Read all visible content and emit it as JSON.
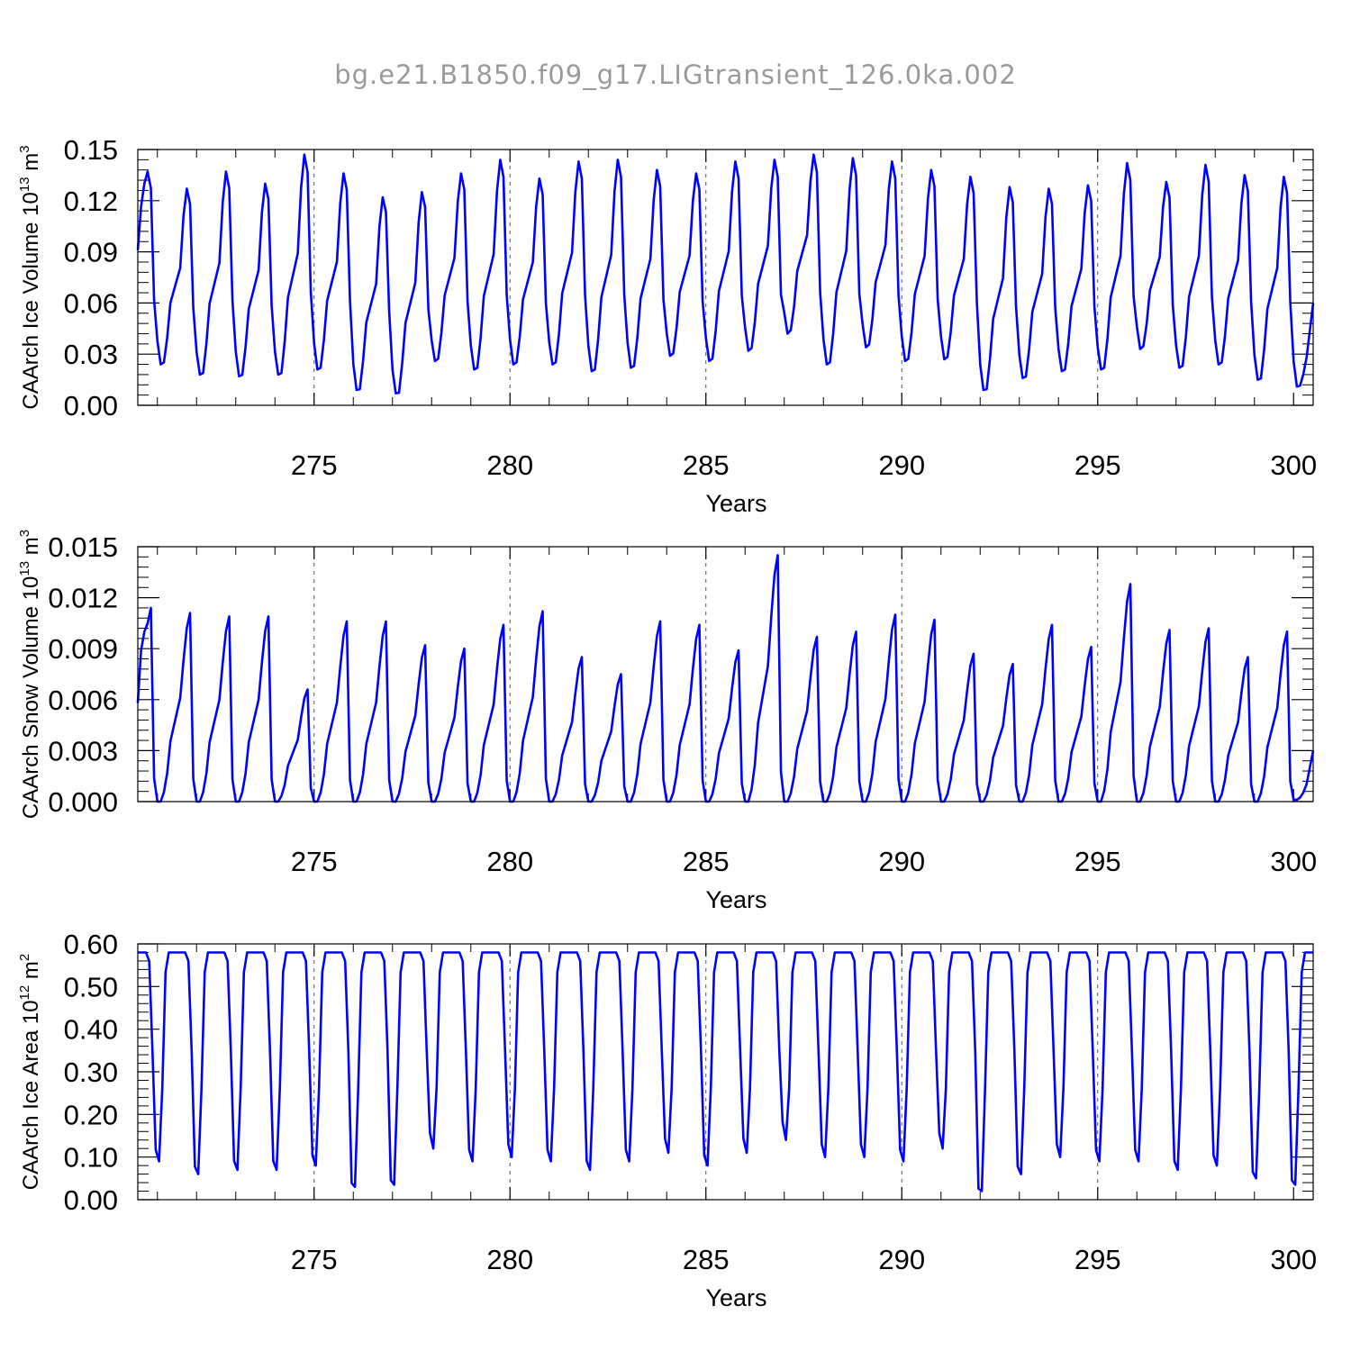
{
  "figure": {
    "title": "bg.e21.B1850.f09_g17.LIGtransient_126.0ka.002"
  },
  "chart_data": [
    {
      "type": "line",
      "name": "ice_volume",
      "ylabel": "CAArch Ice Volume 10",
      "ylabel_exp": "13",
      "ylabel_unit": " m",
      "ylabel_unit_exp": "3",
      "xlabel": "Years",
      "xlim": [
        270.5,
        300.5
      ],
      "ylim": [
        0,
        0.15
      ],
      "xticks": [
        "275",
        "280",
        "285",
        "290",
        "295",
        "300"
      ],
      "yticks": [
        "0.00",
        "0.03",
        "0.06",
        "0.09",
        "0.12",
        "0.15"
      ],
      "vgrid_years": [
        275,
        280,
        285,
        290,
        295
      ],
      "color": "#0000ff",
      "series": [
        {
          "name": "",
          "peaks": [
            0.137,
            0.127,
            0.137,
            0.13,
            0.147,
            0.136,
            0.122,
            0.125,
            0.136,
            0.144,
            0.133,
            0.143,
            0.144,
            0.138,
            0.136,
            0.143,
            0.144,
            0.147,
            0.145,
            0.143,
            0.138,
            0.134,
            0.128,
            0.127,
            0.129,
            0.142,
            0.131,
            0.141,
            0.135,
            0.134
          ],
          "troughs": [
            0.024,
            0.018,
            0.017,
            0.018,
            0.021,
            0.009,
            0.007,
            0.026,
            0.021,
            0.024,
            0.024,
            0.02,
            0.022,
            0.029,
            0.026,
            0.032,
            0.042,
            0.024,
            0.034,
            0.026,
            0.027,
            0.009,
            0.016,
            0.02,
            0.021,
            0.033,
            0.022,
            0.024,
            0.015,
            0.011
          ],
          "start": 0.091,
          "end": 0.06
        }
      ]
    },
    {
      "type": "line",
      "name": "snow_volume",
      "ylabel": "CAArch Snow Volume 10",
      "ylabel_exp": "13",
      "ylabel_unit": " m",
      "ylabel_unit_exp": "3",
      "xlabel": "Years",
      "xlim": [
        270.5,
        300.5
      ],
      "ylim": [
        0,
        0.015
      ],
      "xticks": [
        "275",
        "280",
        "285",
        "290",
        "295",
        "300"
      ],
      "yticks": [
        "0.000",
        "0.003",
        "0.006",
        "0.009",
        "0.012",
        "0.015"
      ],
      "vgrid_years": [
        275,
        280,
        285,
        290,
        295
      ],
      "color": "#0000ff",
      "series": [
        {
          "name": "",
          "peaks": [
            0.0114,
            0.0111,
            0.0109,
            0.0109,
            0.0066,
            0.0106,
            0.0106,
            0.0092,
            0.009,
            0.0104,
            0.0112,
            0.0085,
            0.0075,
            0.0106,
            0.0104,
            0.0089,
            0.0145,
            0.0097,
            0.01,
            0.011,
            0.0107,
            0.0087,
            0.0081,
            0.0104,
            0.0091,
            0.0128,
            0.0101,
            0.0102,
            0.0085,
            0.01
          ],
          "troughs": [
            0.0,
            0.0,
            0.0,
            0.0,
            0.0,
            0.0,
            0.0,
            0.0,
            0.0,
            0.0,
            0.0,
            0.0,
            0.0,
            0.0,
            0.0,
            0.0,
            0.0,
            0.0,
            0.0,
            0.0,
            0.0,
            0.0,
            0.0,
            0.0,
            0.0,
            0.0,
            0.0,
            0.0,
            0.0,
            0.0001
          ],
          "start": 0.0058,
          "end": 0.003
        }
      ]
    },
    {
      "type": "line",
      "name": "ice_area",
      "ylabel": "CAArch Ice Area 10",
      "ylabel_exp": "12",
      "ylabel_unit": " m",
      "ylabel_unit_exp": "2",
      "xlabel": "Years",
      "xlim": [
        270.5,
        300.5
      ],
      "ylim": [
        0,
        0.6
      ],
      "xticks": [
        "275",
        "280",
        "285",
        "290",
        "295",
        "300"
      ],
      "yticks": [
        "0.00",
        "0.10",
        "0.20",
        "0.30",
        "0.40",
        "0.50",
        "0.60"
      ],
      "vgrid_years": [
        275,
        280,
        285,
        290,
        295
      ],
      "color": "#0000ff",
      "series": [
        {
          "name": "",
          "plateau": 0.58,
          "troughs": [
            0.09,
            0.06,
            0.07,
            0.07,
            0.08,
            0.03,
            0.035,
            0.12,
            0.09,
            0.1,
            0.09,
            0.07,
            0.09,
            0.11,
            0.08,
            0.11,
            0.14,
            0.1,
            0.1,
            0.09,
            0.12,
            0.02,
            0.06,
            0.1,
            0.09,
            0.09,
            0.07,
            0.08,
            0.05,
            0.035
          ],
          "start": 0.58,
          "end": 0.58
        }
      ]
    }
  ]
}
